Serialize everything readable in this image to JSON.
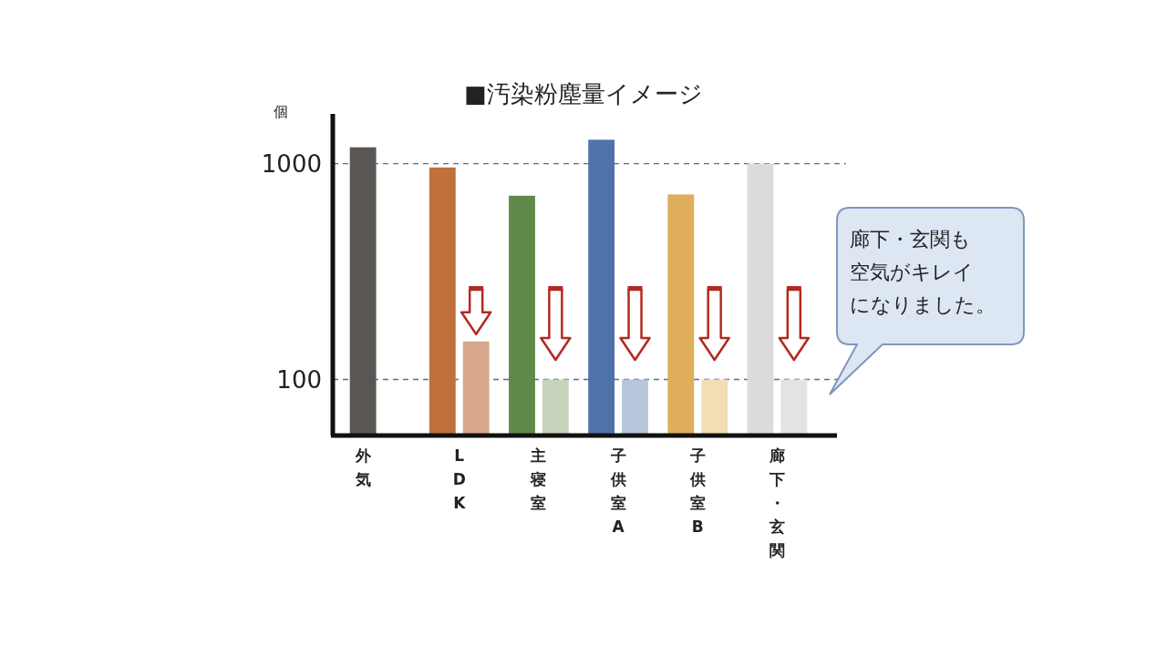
{
  "chart_data": {
    "type": "bar",
    "title": "■汚染粉塵量イメージ",
    "ylabel": "個",
    "categories": [
      "外気",
      "LDK",
      "主寝室",
      "子供室A",
      "子供室B",
      "廊下・玄関"
    ],
    "series": [
      {
        "colors": [
          "#5a5654",
          "#c0703a",
          "#5f8a4a",
          "#4f72a8",
          "#dfae5a",
          "#dddbdc"
        ],
        "values": [
          1190,
          960,
          710,
          1290,
          720,
          1000
        ]
      },
      {
        "colors": [
          null,
          "#d7a88c",
          "#c5d4bb",
          "#b8c6dc",
          "#f1deb4",
          "#e3e3e3"
        ],
        "values": [
          null,
          150,
          100,
          100,
          100,
          100
        ]
      }
    ],
    "log": "y",
    "ylim": [
      55,
      1700
    ],
    "yticks": [
      100,
      1000
    ],
    "grid": "y",
    "annotations": [
      "廊下・玄関も空気がキレイになりました。"
    ]
  }
}
